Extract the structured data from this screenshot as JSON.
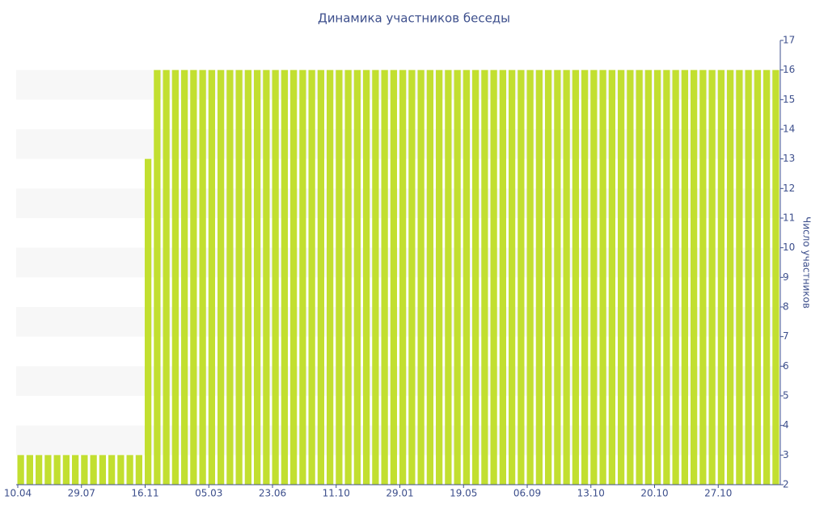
{
  "chart_data": {
    "type": "bar",
    "title": "Динамика участников беседы",
    "y_axis_label": "Число участников",
    "categories": [
      "10.04",
      null,
      null,
      null,
      null,
      null,
      null,
      "29.07",
      null,
      null,
      null,
      null,
      null,
      null,
      "16.11",
      null,
      null,
      null,
      null,
      null,
      null,
      "05.03",
      null,
      null,
      null,
      null,
      null,
      null,
      "23.06",
      null,
      null,
      null,
      null,
      null,
      null,
      "11.10",
      null,
      null,
      null,
      null,
      null,
      null,
      "29.01",
      null,
      null,
      null,
      null,
      null,
      null,
      "19.05",
      null,
      null,
      null,
      null,
      null,
      null,
      "06.09",
      null,
      null,
      null,
      null,
      null,
      null,
      "13.10",
      null,
      null,
      null,
      null,
      null,
      null,
      "20.10",
      null,
      null,
      null,
      null,
      null,
      null,
      "27.10",
      null,
      null,
      null,
      null,
      null,
      null
    ],
    "values": [
      3,
      3,
      3,
      3,
      3,
      3,
      3,
      3,
      3,
      3,
      3,
      3,
      3,
      3,
      13,
      16,
      16,
      16,
      16,
      16,
      16,
      16,
      16,
      16,
      16,
      16,
      16,
      16,
      16,
      16,
      16,
      16,
      16,
      16,
      16,
      16,
      16,
      16,
      16,
      16,
      16,
      16,
      16,
      16,
      16,
      16,
      16,
      16,
      16,
      16,
      16,
      16,
      16,
      16,
      16,
      16,
      16,
      16,
      16,
      16,
      16,
      16,
      16,
      16,
      16,
      16,
      16,
      16,
      16,
      16,
      16,
      16,
      16,
      16,
      16,
      16,
      16,
      16,
      16,
      16,
      16,
      16,
      16,
      16
    ],
    "color": "#c2df30",
    "ylim": [
      2,
      17
    ],
    "yticks": [
      2,
      3,
      4,
      5,
      6,
      7,
      8,
      9,
      10,
      11,
      12,
      13,
      14,
      15,
      16,
      17
    ],
    "y_axis_side": "right",
    "grid": true
  }
}
